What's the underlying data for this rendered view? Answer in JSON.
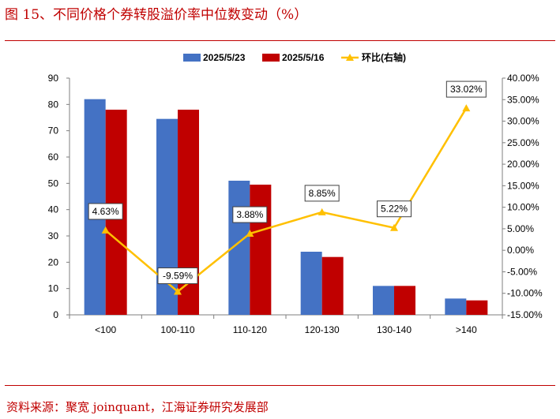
{
  "figure": {
    "title": "图 15、不同价格个券转股溢价率中位数变动（%）",
    "source": "资料来源：聚宽 joinquant，江海证券研究发展部"
  },
  "colors": {
    "accent": "#c00000",
    "series1": "#4472c4",
    "series2": "#c00000",
    "line": "#ffc000"
  },
  "chart_data": {
    "type": "bar",
    "categories": [
      "<100",
      "100-110",
      "110-120",
      "120-130",
      "130-140",
      ">140"
    ],
    "series": [
      {
        "name": "2025/5/23",
        "type": "bar",
        "axis": "left",
        "values": [
          82,
          74.5,
          51,
          24,
          11,
          6.2
        ]
      },
      {
        "name": "2025/5/16",
        "type": "bar",
        "axis": "left",
        "values": [
          78,
          78,
          49.5,
          22,
          11,
          5.5
        ]
      },
      {
        "name": "环比(右轴)",
        "type": "line",
        "axis": "right",
        "values": [
          4.63,
          -9.59,
          3.88,
          8.85,
          5.22,
          33.02
        ]
      }
    ],
    "data_labels": [
      "4.63%",
      "-9.59%",
      "3.88%",
      "8.85%",
      "5.22%",
      "33.02%"
    ],
    "y_left": {
      "range": [
        0,
        90
      ],
      "ticks": [
        "0",
        "10",
        "20",
        "30",
        "40",
        "50",
        "60",
        "70",
        "80",
        "90"
      ]
    },
    "y_right": {
      "range": [
        -15,
        40
      ],
      "ticks": [
        "-15.00%",
        "-10.00%",
        "-5.00%",
        "0.00%",
        "5.00%",
        "10.00%",
        "15.00%",
        "20.00%",
        "25.00%",
        "30.00%",
        "35.00%",
        "40.00%"
      ]
    },
    "grid": false,
    "legend_position": "top"
  }
}
